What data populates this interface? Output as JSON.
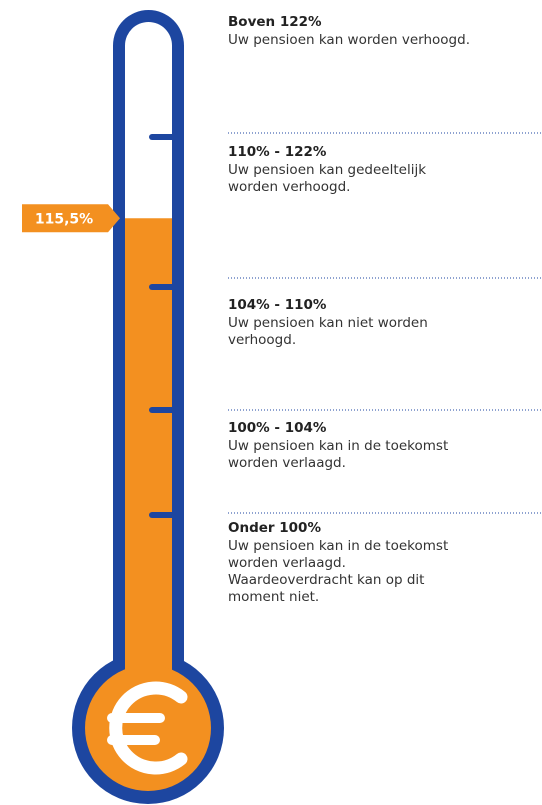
{
  "level": {
    "value": 115.5,
    "label": "115,5%"
  },
  "thresholds": [
    122,
    110,
    104,
    100
  ],
  "sections": [
    {
      "range": "Boven 122%",
      "description": [
        "Uw pensioen kan worden verhoogd."
      ]
    },
    {
      "range": "110% - 122%",
      "description": [
        "Uw pensioen kan gedeeltelijk",
        "worden verhoogd."
      ]
    },
    {
      "range": "104% - 110%",
      "description": [
        "Uw pensioen kan niet worden",
        "verhoogd."
      ]
    },
    {
      "range": "100% - 104%",
      "description": [
        "Uw pensioen kan in de toekomst",
        "worden verlaagd."
      ]
    },
    {
      "range": "Onder 100%",
      "description": [
        "Uw pensioen kan in de toekomst",
        "worden verlaagd.",
        "Waardeoverdracht kan op dit",
        "moment niet."
      ]
    }
  ]
}
